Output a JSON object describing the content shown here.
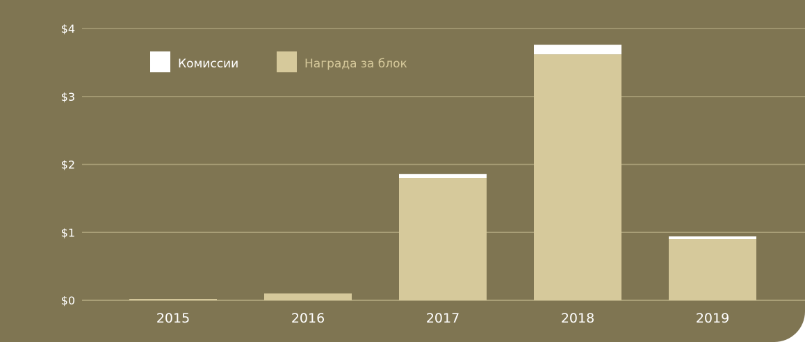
{
  "chart_data": {
    "type": "bar",
    "stacked": true,
    "categories": [
      "2015",
      "2016",
      "2017",
      "2018",
      "2019"
    ],
    "series": [
      {
        "name": "Награда за блок",
        "color": "#d6c99b",
        "values": [
          0.02,
          0.1,
          1.8,
          3.62,
          0.9
        ]
      },
      {
        "name": "Комиссии",
        "color": "#ffffff",
        "values": [
          0.0,
          0.0,
          0.06,
          0.14,
          0.04
        ]
      }
    ],
    "ylim": [
      0,
      4
    ],
    "yticks": [
      0,
      1,
      2,
      3,
      4
    ],
    "ytick_labels": [
      "$0",
      "$1",
      "$2",
      "$3",
      "$4"
    ],
    "legend": [
      {
        "label": "Комиссии",
        "color": "#ffffff"
      },
      {
        "label": "Награда за блок",
        "color": "#d6c99b"
      }
    ],
    "legend_position": "top-left",
    "grid": true,
    "background": "#7f7552",
    "gridline_color": "#a99f77"
  }
}
